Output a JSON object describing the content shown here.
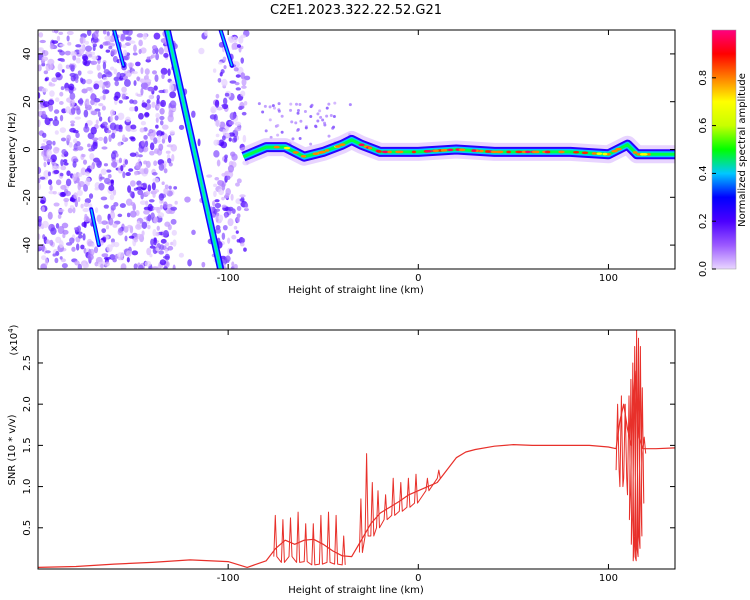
{
  "figure": {
    "title": "C2E1.2023.322.22.52.G21"
  },
  "chart_data": [
    {
      "type": "heatmap",
      "xlabel": "Height of straight line (km)",
      "ylabel": "Frequency (Hz)",
      "xlim": [
        -200,
        135
      ],
      "ylim": [
        -50,
        50
      ],
      "x_ticks": [
        -100,
        0,
        100
      ],
      "x_tick_labels": [
        "-100",
        "0",
        "100"
      ],
      "y_ticks": [
        -40,
        -20,
        0,
        20,
        40
      ],
      "y_tick_labels": [
        "-40",
        "-20",
        "0",
        "20",
        "40"
      ],
      "grid": false,
      "colorbar": {
        "label": "Normalized spectral amplitude",
        "range": [
          0,
          1
        ],
        "ticks": [
          0.0,
          0.2,
          0.4,
          0.6,
          0.8
        ],
        "tick_labels": [
          "0.0",
          "0.2",
          "0.4",
          "0.6",
          "0.8"
        ],
        "colormap": [
          "#e9d6ff",
          "#9b59ff",
          "#4b00ff",
          "#0000ff",
          "#00c8ff",
          "#00ff00",
          "#c8ff00",
          "#ffff00",
          "#ff8000",
          "#ff0000",
          "#ff0080"
        ]
      },
      "features": {
        "noise_region_x": [
          -200,
          -90
        ],
        "diagonal_streaks": [
          {
            "x": [
              -132,
              -104
            ],
            "y": [
              50,
              -50
            ]
          },
          {
            "x": [
              -104,
              -98
            ],
            "y": [
              50,
              35
            ]
          },
          {
            "x": [
              -160,
              -155
            ],
            "y": [
              50,
              35
            ]
          },
          {
            "x": [
              -172,
              -168
            ],
            "y": [
              -25,
              -40
            ]
          }
        ],
        "ridge": {
          "x": [
            -92,
            -80,
            -70,
            -60,
            -50,
            -40,
            -35,
            -30,
            -20,
            -10,
            0,
            20,
            40,
            60,
            80,
            100,
            110,
            115,
            135
          ],
          "y": [
            -3,
            1,
            1,
            -3,
            -1,
            2,
            4,
            2,
            -1,
            -1,
            -1,
            0,
            -1,
            -1,
            -1,
            -2,
            2,
            -2,
            -2
          ]
        }
      }
    },
    {
      "type": "line",
      "xlabel": "Height of straight line (km)",
      "ylabel": "SNR (10 * v/v)",
      "y_multiplier": "(x10",
      "y_multiplier_exp": "4",
      "xlim": [
        -200,
        135
      ],
      "ylim": [
        0,
        29000
      ],
      "x_ticks": [
        -100,
        0,
        100
      ],
      "x_tick_labels": [
        "-100",
        "0",
        "100"
      ],
      "y_ticks": [
        5000,
        10000,
        15000,
        20000,
        25000
      ],
      "y_tick_labels": [
        "0.5",
        "1.0",
        "1.5",
        "2.0",
        "2.5"
      ],
      "grid": false,
      "color": "#e8302a",
      "series": [
        {
          "x": [
            -200,
            -180,
            -160,
            -140,
            -120,
            -100,
            -90,
            -80,
            -75,
            -70,
            -65,
            -60,
            -55,
            -50,
            -45,
            -40,
            -35,
            -30,
            -25,
            -20,
            -15,
            -10,
            -5,
            0,
            5,
            10,
            15,
            20,
            25,
            30,
            40,
            50,
            60,
            70,
            80,
            90,
            100,
            104,
            106,
            108,
            110,
            112,
            114,
            116,
            118,
            125,
            135
          ],
          "y": [
            200,
            300,
            600,
            800,
            1100,
            900,
            200,
            1000,
            2500,
            3500,
            3000,
            3500,
            3600,
            3000,
            2200,
            1600,
            1500,
            3500,
            5500,
            6800,
            7500,
            8200,
            9000,
            9500,
            10000,
            10500,
            12000,
            13500,
            14200,
            14500,
            14900,
            15100,
            15000,
            15000,
            15000,
            15000,
            14800,
            14600,
            18000,
            20000,
            17000,
            15000,
            24000,
            16000,
            14600,
            14600,
            14700
          ]
        }
      ],
      "spikes": [
        {
          "x": [
            -76,
            -72,
            -68,
            -64,
            -60,
            -56,
            -52,
            -48,
            -44,
            -40
          ],
          "peak": [
            6500,
            6000,
            6200,
            6900,
            5500,
            5500,
            6500,
            6900,
            6500,
            4000
          ],
          "trough": [
            1500,
            800,
            1500,
            800,
            900,
            500,
            600,
            800,
            600,
            500
          ]
        },
        {
          "x": [
            -31,
            -28,
            -25,
            -22,
            -18,
            -14,
            -10,
            -6,
            -2,
            4,
            10
          ],
          "peak": [
            8500,
            14000,
            10500,
            9500,
            9000,
            11000,
            10500,
            11000,
            11500,
            11000,
            12000
          ],
          "trough": [
            2000,
            4000,
            4000,
            5000,
            6000,
            6500,
            7000,
            7500,
            8000,
            9500,
            11000
          ]
        },
        {
          "x": [
            104,
            106,
            108,
            110,
            111,
            112,
            113,
            114,
            115,
            116,
            117,
            118
          ],
          "peak": [
            20000,
            21000,
            20000,
            21000,
            23000,
            25000,
            27000,
            29000,
            28000,
            27000,
            22000,
            16000
          ],
          "trough": [
            12000,
            10000,
            11000,
            9000,
            6000,
            3000,
            1000,
            1500,
            2500,
            4000,
            8000,
            14000
          ]
        }
      ]
    }
  ]
}
